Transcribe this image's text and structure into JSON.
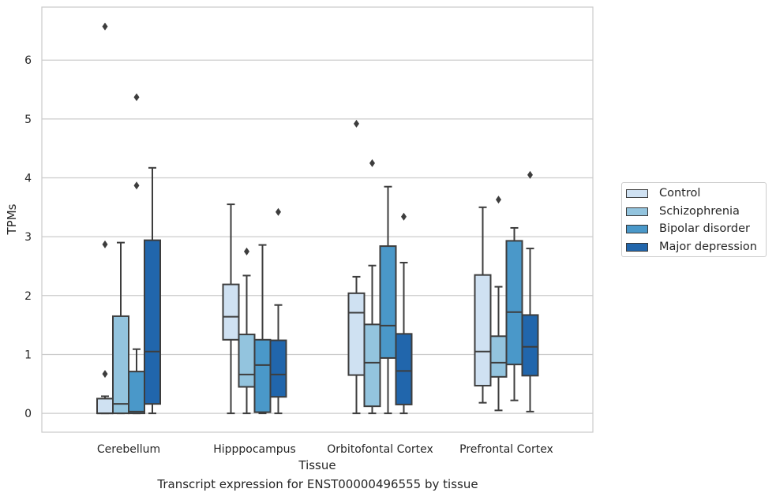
{
  "chart_data": {
    "type": "box",
    "title": "Transcript expression for ENST00000496555 by tissue",
    "xlabel": "Tissue",
    "ylabel": "TPMs",
    "ylim": [
      -0.32,
      6.9
    ],
    "yticks": [
      0,
      1,
      2,
      3,
      4,
      5,
      6
    ],
    "grid": true,
    "legend_position": "right",
    "categories": [
      "Cerebellum",
      "Hipppocampus",
      "Orbitofontal Cortex",
      "Prefrontal Cortex"
    ],
    "series": [
      {
        "name": "Control",
        "color": "#cfe1f2",
        "boxes": [
          {
            "min": 0.0,
            "q1": 0.0,
            "median": 0.0,
            "q3": 0.25,
            "max": 0.29,
            "outliers": [
              0.67,
              2.87,
              6.57
            ]
          },
          {
            "min": 0.0,
            "q1": 1.25,
            "median": 1.64,
            "q3": 2.19,
            "max": 3.55,
            "outliers": []
          },
          {
            "min": 0.0,
            "q1": 0.65,
            "median": 1.71,
            "q3": 2.04,
            "max": 2.32,
            "outliers": [
              4.92
            ]
          },
          {
            "min": 0.18,
            "q1": 0.47,
            "median": 1.05,
            "q3": 2.35,
            "max": 3.5,
            "outliers": []
          }
        ]
      },
      {
        "name": "Schizophrenia",
        "color": "#93c4de",
        "boxes": [
          {
            "min": 0.0,
            "q1": 0.0,
            "median": 0.16,
            "q3": 1.65,
            "max": 2.9,
            "outliers": []
          },
          {
            "min": 0.0,
            "q1": 0.45,
            "median": 0.66,
            "q3": 1.34,
            "max": 2.34,
            "outliers": [
              2.75
            ]
          },
          {
            "min": 0.0,
            "q1": 0.12,
            "median": 0.86,
            "q3": 1.51,
            "max": 2.51,
            "outliers": [
              4.25
            ]
          },
          {
            "min": 0.05,
            "q1": 0.62,
            "median": 0.86,
            "q3": 1.31,
            "max": 2.15,
            "outliers": [
              3.63
            ]
          }
        ]
      },
      {
        "name": "Bipolar disorder",
        "color": "#4a98c9",
        "boxes": [
          {
            "min": 0.0,
            "q1": 0.0,
            "median": 0.03,
            "q3": 0.71,
            "max": 1.09,
            "outliers": [
              3.87,
              5.37
            ]
          },
          {
            "min": 0.0,
            "q1": 0.02,
            "median": 0.82,
            "q3": 1.25,
            "max": 2.86,
            "outliers": []
          },
          {
            "min": 0.0,
            "q1": 0.94,
            "median": 1.49,
            "q3": 2.84,
            "max": 3.85,
            "outliers": []
          },
          {
            "min": 0.22,
            "q1": 0.83,
            "median": 1.72,
            "q3": 2.93,
            "max": 3.15,
            "outliers": []
          }
        ]
      },
      {
        "name": "Major depression",
        "color": "#2166ac",
        "boxes": [
          {
            "min": 0.0,
            "q1": 0.16,
            "median": 1.05,
            "q3": 2.94,
            "max": 4.17,
            "outliers": []
          },
          {
            "min": 0.0,
            "q1": 0.28,
            "median": 0.66,
            "q3": 1.24,
            "max": 1.84,
            "outliers": [
              3.42
            ]
          },
          {
            "min": 0.0,
            "q1": 0.15,
            "median": 0.72,
            "q3": 1.35,
            "max": 2.56,
            "outliers": [
              3.34
            ]
          },
          {
            "min": 0.03,
            "q1": 0.64,
            "median": 1.13,
            "q3": 1.67,
            "max": 2.8,
            "outliers": [
              4.05
            ]
          }
        ]
      }
    ]
  }
}
